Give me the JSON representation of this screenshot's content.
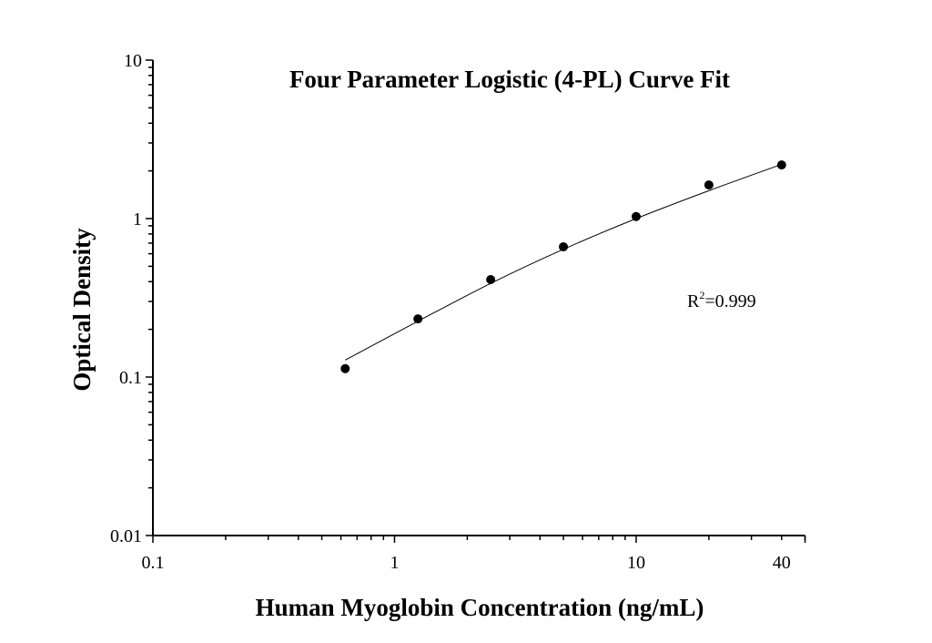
{
  "chart_data": {
    "type": "scatter",
    "title": "Four Parameter Logistic (4-PL) Curve Fit",
    "xlabel": "Human Myoglobin Concentration (ng/mL)",
    "ylabel": "Optical Density",
    "xscale": "log",
    "yscale": "log",
    "xlim": [
      0.1,
      50
    ],
    "ylim": [
      0.01,
      10
    ],
    "xticks": [
      0.1,
      1,
      10,
      40
    ],
    "xtick_labels": [
      "0.1",
      "1",
      "10",
      "40"
    ],
    "yticks": [
      0.01,
      0.1,
      1,
      10
    ],
    "ytick_labels": [
      "0.01",
      "0.1",
      "1",
      "10"
    ],
    "grid": false,
    "legend": "none",
    "series": [
      {
        "x": [
          0.625,
          1.25,
          2.5,
          5,
          10,
          20,
          40
        ],
        "y": [
          0.113,
          0.233,
          0.412,
          0.664,
          1.03,
          1.63,
          2.18
        ],
        "marker": "filled-circle",
        "color": "#000000"
      }
    ],
    "fit_curve": {
      "x": [
        0.625,
        1.25,
        2.5,
        5,
        10,
        20,
        40
      ],
      "y": [
        0.128,
        0.225,
        0.39,
        0.64,
        1.0,
        1.5,
        2.2
      ],
      "color": "#000000"
    },
    "annotation": {
      "r_label": "R",
      "r_sup": "2",
      "r_value": "=0.999"
    }
  }
}
